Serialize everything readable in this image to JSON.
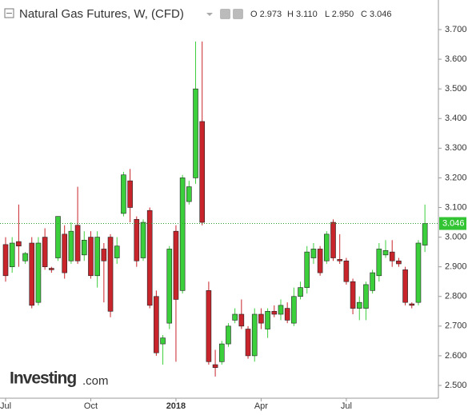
{
  "header": {
    "title": "Natural Gas Futures, W, (CFD)",
    "ohlc": [
      "O 2.973",
      "H 3.110",
      "L 2.950",
      "C 3.046"
    ]
  },
  "watermark": [
    "Investing",
    ".com"
  ],
  "chart_data": {
    "type": "candlestick",
    "categories": [
      null,
      null,
      null,
      null,
      null,
      null,
      null,
      null,
      null,
      null,
      null,
      null,
      null,
      null,
      null,
      null,
      null,
      null,
      null,
      null,
      null,
      null,
      null,
      null,
      null,
      null,
      null,
      null,
      null,
      null,
      null,
      null,
      null,
      null,
      null,
      null,
      null,
      null,
      null,
      null,
      null,
      null,
      null,
      null,
      null,
      null,
      null,
      null,
      null,
      null,
      null,
      null,
      null,
      null,
      null,
      null,
      null,
      null,
      null,
      null,
      null,
      null,
      null,
      null,
      null
    ],
    "open": [
      2.975,
      2.9,
      2.985,
      2.92,
      2.98,
      2.78,
      3.0,
      2.895,
      2.93,
      3.01,
      2.92,
      3.04,
      2.94,
      3.0,
      2.87,
      2.96,
      3.0,
      2.93,
      3.08,
      3.19,
      3.06,
      2.93,
      3.09,
      2.8,
      2.64,
      2.71,
      3.02,
      2.82,
      3.12,
      3.2,
      3.39,
      2.82,
      2.57,
      2.58,
      2.64,
      2.72,
      2.74,
      2.69,
      2.6,
      2.74,
      2.69,
      2.75,
      2.74,
      2.76,
      2.71,
      2.8,
      2.83,
      2.93,
      2.96,
      2.92,
      3.05,
      2.925,
      2.92,
      2.85,
      2.76,
      2.76,
      2.82,
      2.87,
      2.94,
      2.95,
      2.92,
      2.89,
      2.775,
      2.78,
      2.973
    ],
    "high": [
      3.0,
      3.0,
      3.11,
      2.95,
      3.0,
      3.0,
      3.03,
      2.9,
      3.07,
      3.04,
      3.05,
      3.17,
      3.02,
      3.02,
      3.02,
      2.98,
      3.01,
      3.0,
      3.22,
      3.23,
      3.07,
      3.06,
      3.1,
      2.82,
      2.67,
      2.97,
      3.04,
      3.21,
      3.19,
      3.66,
      3.66,
      2.85,
      2.62,
      2.65,
      2.71,
      2.76,
      2.79,
      2.7,
      2.76,
      2.76,
      2.76,
      2.77,
      2.79,
      2.78,
      2.83,
      2.85,
      2.97,
      2.98,
      2.97,
      3.02,
      3.06,
      3.01,
      2.93,
      2.86,
      2.8,
      2.85,
      2.89,
      2.98,
      2.99,
      2.99,
      2.93,
      2.9,
      2.78,
      2.99,
      3.11
    ],
    "low": [
      2.85,
      2.88,
      2.9,
      2.91,
      2.76,
      2.77,
      2.89,
      2.88,
      2.92,
      2.86,
      2.91,
      2.91,
      2.92,
      2.86,
      2.83,
      2.78,
      2.73,
      2.91,
      3.07,
      3.05,
      2.9,
      2.92,
      2.76,
      2.6,
      2.57,
      2.69,
      2.58,
      2.81,
      3.11,
      3.18,
      3.04,
      2.57,
      2.53,
      2.57,
      2.63,
      2.71,
      2.69,
      2.59,
      2.58,
      2.69,
      2.66,
      2.73,
      2.72,
      2.71,
      2.7,
      2.79,
      2.81,
      2.91,
      2.87,
      2.91,
      2.92,
      2.91,
      2.84,
      2.74,
      2.72,
      2.72,
      2.81,
      2.85,
      2.93,
      2.9,
      2.9,
      2.77,
      2.76,
      2.77,
      2.95
    ],
    "close": [
      2.87,
      2.98,
      2.97,
      2.945,
      2.77,
      2.98,
      2.9,
      2.89,
      3.07,
      2.88,
      3.02,
      2.92,
      2.99,
      2.87,
      3.0,
      2.92,
      2.75,
      2.97,
      3.21,
      3.1,
      2.92,
      3.05,
      2.77,
      2.61,
      2.66,
      2.96,
      2.79,
      3.2,
      3.17,
      3.5,
      3.05,
      2.58,
      2.56,
      2.64,
      2.7,
      2.74,
      2.7,
      2.6,
      2.74,
      2.71,
      2.75,
      2.74,
      2.77,
      2.72,
      2.8,
      2.83,
      2.95,
      2.96,
      2.88,
      3.01,
      2.93,
      2.92,
      2.85,
      2.76,
      2.78,
      2.84,
      2.88,
      2.96,
      2.955,
      2.92,
      2.91,
      2.78,
      2.77,
      2.98,
      3.046
    ],
    "up_color": "#3ccf3c",
    "down_color": "#c8242b",
    "ylim": [
      2.47,
      3.77
    ],
    "yticks": [
      {
        "value": 2.5,
        "label": "2.500"
      },
      {
        "value": 2.6,
        "label": "2.600"
      },
      {
        "value": 2.7,
        "label": "2.700"
      },
      {
        "value": 2.8,
        "label": "2.800"
      },
      {
        "value": 2.9,
        "label": "2.900"
      },
      {
        "value": 3.0,
        "label": "3.000"
      },
      {
        "value": 3.1,
        "label": "3.100"
      },
      {
        "value": 3.2,
        "label": "3.200"
      },
      {
        "value": 3.3,
        "label": "3.300"
      },
      {
        "value": 3.4,
        "label": "3.400"
      },
      {
        "value": 3.5,
        "label": "3.500"
      },
      {
        "value": 3.6,
        "label": "3.600"
      },
      {
        "value": 3.7,
        "label": "3.700"
      }
    ],
    "xticks": [
      {
        "value": 0,
        "label": "Jul"
      },
      {
        "value": 13,
        "label": "Oct"
      },
      {
        "value": 26,
        "label": "2018"
      },
      {
        "value": 39,
        "label": "Apr"
      },
      {
        "value": 52,
        "label": "Jul"
      }
    ],
    "last_price": {
      "value": 3.046,
      "label": "3.046"
    }
  }
}
